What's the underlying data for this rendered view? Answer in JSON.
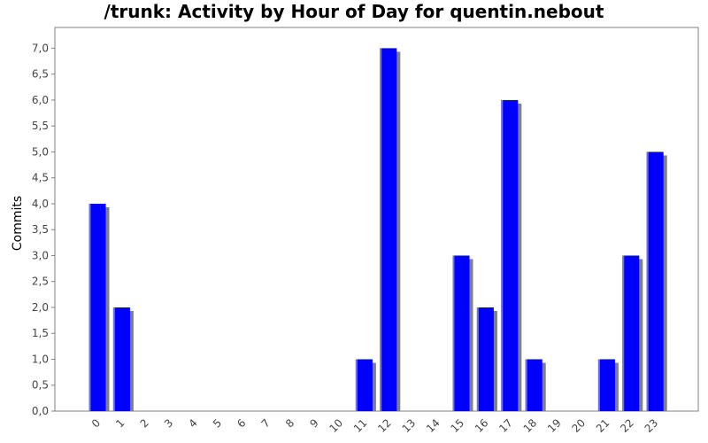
{
  "chart_data": {
    "type": "bar",
    "title": "/trunk: Activity by Hour of Day for quentin.nebout",
    "xlabel": "",
    "ylabel": "Commits",
    "categories": [
      "0",
      "1",
      "2",
      "3",
      "4",
      "5",
      "6",
      "7",
      "8",
      "9",
      "10",
      "11",
      "12",
      "13",
      "14",
      "15",
      "16",
      "17",
      "18",
      "19",
      "20",
      "21",
      "22",
      "23"
    ],
    "values": [
      4,
      2,
      0,
      0,
      0,
      0,
      0,
      0,
      0,
      0,
      0,
      1,
      7,
      0,
      0,
      3,
      2,
      6,
      1,
      0,
      0,
      1,
      3,
      5
    ],
    "ylim": [
      0,
      7.4
    ],
    "yticks": [
      "0,0",
      "0,5",
      "1,0",
      "1,5",
      "2,0",
      "2,5",
      "3,0",
      "3,5",
      "4,0",
      "4,5",
      "5,0",
      "5,5",
      "6,0",
      "6,5",
      "7,0"
    ],
    "grid": false,
    "colors": {
      "bar": "#0000ff",
      "bar_highlight": "#6c6cff",
      "shadow": "#808080",
      "axis": "#808080"
    }
  }
}
